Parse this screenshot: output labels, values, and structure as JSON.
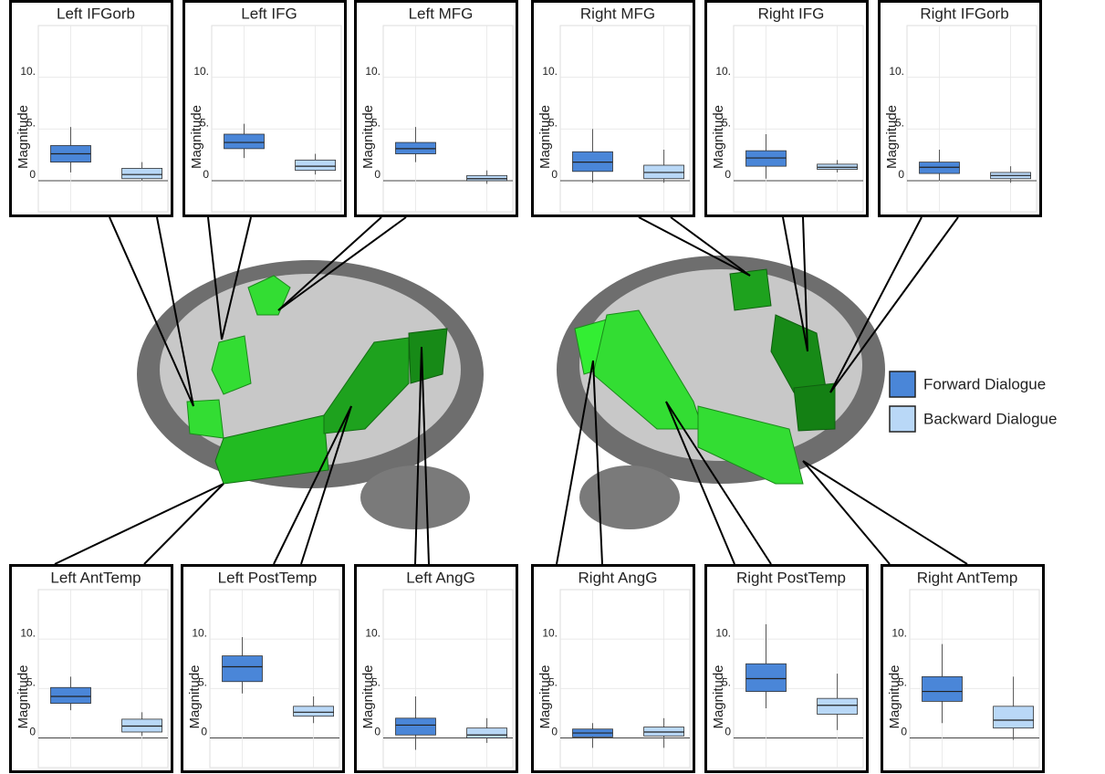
{
  "chart_data": [
    {
      "type": "box",
      "title": "Left IFGorb",
      "y_label": "Magnitude",
      "ylim": [
        -3,
        15
      ],
      "yticks": [
        0,
        {
          "value": 5,
          "label": "5."
        },
        {
          "value": 10,
          "label": "10."
        }
      ],
      "boxes": [
        {
          "color": "#4a86d8",
          "low": 0.8,
          "q1": 1.8,
          "median": 2.6,
          "q3": 3.4,
          "high": 5.2
        },
        {
          "color": "#b9d8f7",
          "low": 0,
          "q1": 0.2,
          "median": 0.6,
          "q3": 1.2,
          "high": 1.8
        }
      ]
    },
    {
      "type": "box",
      "title": "Left IFG",
      "y_label": "Magnitude",
      "ylim": [
        -3,
        15
      ],
      "yticks": [
        0,
        {
          "value": 5,
          "label": "5."
        },
        {
          "value": 10,
          "label": "10."
        }
      ],
      "boxes": [
        {
          "color": "#4a86d8",
          "low": 2.2,
          "q1": 3.1,
          "median": 3.7,
          "q3": 4.5,
          "high": 5.5
        },
        {
          "color": "#b9d8f7",
          "low": 0.6,
          "q1": 1.0,
          "median": 1.4,
          "q3": 2.0,
          "high": 2.6
        }
      ]
    },
    {
      "type": "box",
      "title": "Left MFG",
      "y_label": "Magnitude",
      "ylim": [
        -3,
        15
      ],
      "yticks": [
        0,
        {
          "value": 5,
          "label": "5."
        },
        {
          "value": 10,
          "label": "10."
        }
      ],
      "boxes": [
        {
          "color": "#4a86d8",
          "low": 1.8,
          "q1": 2.6,
          "median": 3.1,
          "q3": 3.7,
          "high": 5.2
        },
        {
          "color": "#b9d8f7",
          "low": -0.3,
          "q1": 0,
          "median": 0.2,
          "q3": 0.5,
          "high": 1.0
        }
      ]
    },
    {
      "type": "box",
      "title": "Right MFG",
      "y_label": "Magnitude",
      "ylim": [
        -3,
        15
      ],
      "yticks": [
        0,
        {
          "value": 5,
          "label": "5."
        },
        {
          "value": 10,
          "label": "10."
        }
      ],
      "boxes": [
        {
          "color": "#4a86d8",
          "low": -0.2,
          "q1": 0.9,
          "median": 1.8,
          "q3": 2.8,
          "high": 5.0
        },
        {
          "color": "#b9d8f7",
          "low": -0.2,
          "q1": 0.2,
          "median": 0.8,
          "q3": 1.5,
          "high": 3.0
        }
      ]
    },
    {
      "type": "box",
      "title": "Right IFG",
      "y_label": "Magnitude",
      "ylim": [
        -3,
        15
      ],
      "yticks": [
        0,
        {
          "value": 5,
          "label": "5."
        },
        {
          "value": 10,
          "label": "10."
        }
      ],
      "boxes": [
        {
          "color": "#4a86d8",
          "low": 0.2,
          "q1": 1.4,
          "median": 2.2,
          "q3": 2.9,
          "high": 4.5
        },
        {
          "color": "#b9d8f7",
          "low": 0.8,
          "q1": 1.1,
          "median": 1.3,
          "q3": 1.6,
          "high": 2.0
        }
      ]
    },
    {
      "type": "box",
      "title": "Right IFGorb",
      "y_label": "Magnitude",
      "ylim": [
        -3,
        15
      ],
      "yticks": [
        0,
        {
          "value": 5,
          "label": "5."
        },
        {
          "value": 10,
          "label": "10."
        }
      ],
      "boxes": [
        {
          "color": "#4a86d8",
          "low": 0,
          "q1": 0.7,
          "median": 1.3,
          "q3": 1.8,
          "high": 3.0
        },
        {
          "color": "#b9d8f7",
          "low": -0.2,
          "q1": 0.2,
          "median": 0.5,
          "q3": 0.8,
          "high": 1.4
        }
      ]
    },
    {
      "type": "box",
      "title": "Left AntTemp",
      "y_label": "Magnitude",
      "ylim": [
        -3,
        15
      ],
      "yticks": [
        0,
        {
          "value": 5,
          "label": "5."
        },
        {
          "value": 10,
          "label": "10."
        }
      ],
      "boxes": [
        {
          "color": "#4a86d8",
          "low": 2.8,
          "q1": 3.5,
          "median": 4.2,
          "q3": 5.1,
          "high": 6.2
        },
        {
          "color": "#b9d8f7",
          "low": 0.2,
          "q1": 0.6,
          "median": 1.2,
          "q3": 1.9,
          "high": 2.6
        }
      ]
    },
    {
      "type": "box",
      "title": "Left PostTemp",
      "y_label": "Magnitude",
      "ylim": [
        -3,
        15
      ],
      "yticks": [
        0,
        {
          "value": 5,
          "label": "5."
        },
        {
          "value": 10,
          "label": "10."
        }
      ],
      "boxes": [
        {
          "color": "#4a86d8",
          "low": 4.5,
          "q1": 5.7,
          "median": 7.2,
          "q3": 8.3,
          "high": 10.2
        },
        {
          "color": "#b9d8f7",
          "low": 1.5,
          "q1": 2.2,
          "median": 2.6,
          "q3": 3.2,
          "high": 4.2
        }
      ]
    },
    {
      "type": "box",
      "title": "Left AngG",
      "y_label": "Magnitude",
      "ylim": [
        -3,
        15
      ],
      "yticks": [
        0,
        {
          "value": 5,
          "label": "5."
        },
        {
          "value": 10,
          "label": "10."
        }
      ],
      "boxes": [
        {
          "color": "#4a86d8",
          "low": -1.2,
          "q1": 0.3,
          "median": 1.3,
          "q3": 2.0,
          "high": 4.2
        },
        {
          "color": "#b9d8f7",
          "low": -0.5,
          "q1": 0,
          "median": 0.3,
          "q3": 1.0,
          "high": 2.0
        }
      ]
    },
    {
      "type": "box",
      "title": "Right AngG",
      "y_label": "Magnitude",
      "ylim": [
        -3,
        15
      ],
      "yticks": [
        0,
        {
          "value": 5,
          "label": "5."
        },
        {
          "value": 10,
          "label": "10."
        }
      ],
      "boxes": [
        {
          "color": "#4a86d8",
          "low": -1,
          "q1": 0.1,
          "median": 0.5,
          "q3": 0.9,
          "high": 1.5
        },
        {
          "color": "#b9d8f7",
          "low": -1,
          "q1": 0.2,
          "median": 0.6,
          "q3": 1.1,
          "high": 2.0
        }
      ]
    },
    {
      "type": "box",
      "title": "Right PostTemp",
      "y_label": "Magnitude",
      "ylim": [
        -3,
        15
      ],
      "yticks": [
        0,
        {
          "value": 5,
          "label": "5."
        },
        {
          "value": 10,
          "label": "10."
        }
      ],
      "boxes": [
        {
          "color": "#4a86d8",
          "low": 3,
          "q1": 4.7,
          "median": 6.0,
          "q3": 7.5,
          "high": 11.5
        },
        {
          "color": "#b9d8f7",
          "low": 0.8,
          "q1": 2.4,
          "median": 3.3,
          "q3": 4.0,
          "high": 6.5
        }
      ]
    },
    {
      "type": "box",
      "title": "Right AntTemp",
      "y_label": "Magnitude",
      "ylim": [
        -3,
        15
      ],
      "yticks": [
        0,
        {
          "value": 5,
          "label": "5."
        },
        {
          "value": 10,
          "label": "10."
        }
      ],
      "boxes": [
        {
          "color": "#4a86d8",
          "low": 1.5,
          "q1": 3.7,
          "median": 4.7,
          "q3": 6.2,
          "high": 9.5
        },
        {
          "color": "#b9d8f7",
          "low": -0.2,
          "q1": 1.0,
          "median": 1.8,
          "q3": 3.2,
          "high": 6.2
        }
      ]
    }
  ],
  "legend": {
    "items": [
      {
        "name": "Forward Dialogue",
        "color": "#4a86d8"
      },
      {
        "name": "Backward Dialogue",
        "color": "#b9d8f7"
      }
    ]
  }
}
